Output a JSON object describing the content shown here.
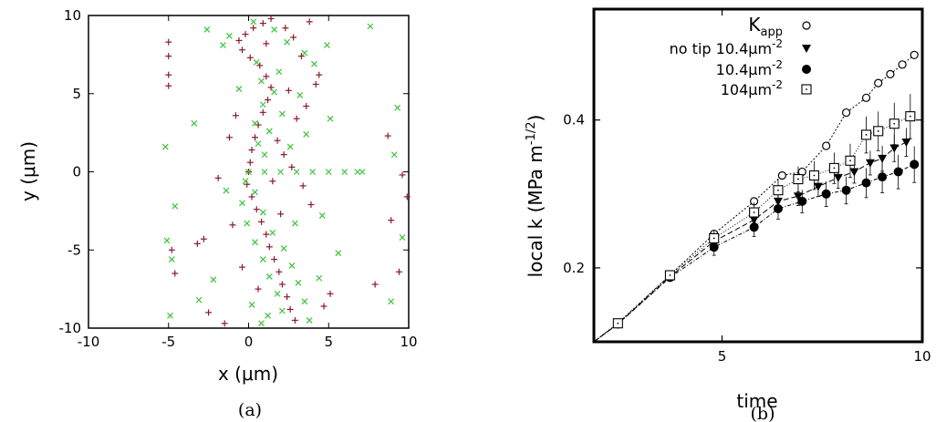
{
  "chart_data": [
    {
      "type": "scatter",
      "caption": "(a)",
      "xlabel": "x (μm)",
      "ylabel": "y (μm)",
      "xlim": [
        -10,
        10
      ],
      "ylim": [
        -10,
        10
      ],
      "xticks": [
        "-10",
        "-5",
        "0",
        "5",
        "10"
      ],
      "yticks": [
        "-10",
        "-5",
        "0",
        "5",
        "10"
      ],
      "colors": {
        "red_plus": "#8b1a2b",
        "green_x": "#3cc23c"
      },
      "series": [
        {
          "marker": "plus",
          "color": "#8b1a2b",
          "points": [
            [
              1.4,
              9.8
            ],
            [
              0.9,
              9.5
            ],
            [
              0.3,
              9.2
            ],
            [
              -0.2,
              8.8
            ],
            [
              -0.6,
              8.4
            ],
            [
              -0.4,
              7.8
            ],
            [
              0.1,
              7.3
            ],
            [
              0.7,
              6.8
            ],
            [
              1.1,
              6.1
            ],
            [
              1.4,
              5.4
            ],
            [
              1.2,
              4.6
            ],
            [
              0.9,
              3.8
            ],
            [
              0.6,
              3.0
            ],
            [
              0.4,
              2.2
            ],
            [
              0.2,
              1.4
            ],
            [
              0.1,
              0.6
            ],
            [
              0,
              0
            ],
            [
              -0.1,
              -0.8
            ],
            [
              0.2,
              -1.6
            ],
            [
              0.5,
              -2.4
            ],
            [
              0.8,
              -3.2
            ],
            [
              1.1,
              -4.0
            ],
            [
              1.3,
              -4.8
            ],
            [
              1.6,
              -5.6
            ],
            [
              1.9,
              -6.4
            ],
            [
              2.1,
              -7.2
            ],
            [
              2.4,
              -8.0
            ],
            [
              2.6,
              -8.8
            ],
            [
              2.9,
              -9.5
            ],
            [
              -5,
              8.3
            ],
            [
              -5,
              7.4
            ],
            [
              -5,
              6.2
            ],
            [
              -5,
              5.5
            ],
            [
              -4.8,
              -5.0
            ],
            [
              -4.6,
              -6.5
            ],
            [
              -3.2,
              -4.6
            ],
            [
              -2.8,
              -4.3
            ],
            [
              -2.5,
              -9.0
            ],
            [
              -1.5,
              -9.7
            ],
            [
              2.2,
              1.1
            ],
            [
              2.7,
              0.3
            ],
            [
              3.4,
              -0.9
            ],
            [
              3.9,
              -2.1
            ],
            [
              3.0,
              3.4
            ],
            [
              3.6,
              4.2
            ],
            [
              4.2,
              5.6
            ],
            [
              5.1,
              -7.8
            ],
            [
              4.7,
              -8.6
            ],
            [
              2.8,
              8.6
            ],
            [
              3.8,
              9.6
            ],
            [
              4.4,
              6.2
            ],
            [
              8.7,
              2.3
            ],
            [
              9.6,
              -0.2
            ],
            [
              9.9,
              -1.6
            ],
            [
              8.9,
              -3.1
            ],
            [
              9.4,
              -6.4
            ],
            [
              7.9,
              -7.2
            ],
            [
              1.8,
              2.0
            ],
            [
              -0.8,
              3.6
            ],
            [
              -1.2,
              2.2
            ],
            [
              2.0,
              -2.7
            ],
            [
              -0.4,
              -6.1
            ],
            [
              0.6,
              -7.5
            ],
            [
              -1.9,
              -0.4
            ],
            [
              1.5,
              -0.6
            ],
            [
              2.5,
              5.2
            ],
            [
              3.3,
              7.4
            ],
            [
              -1.0,
              -3.4
            ],
            [
              1.1,
              8.2
            ],
            [
              2.3,
              9.2
            ]
          ]
        },
        {
          "marker": "cross",
          "color": "#3cc23c",
          "points": [
            [
              0.3,
              9.6
            ],
            [
              1.6,
              9.1
            ],
            [
              -1.2,
              8.7
            ],
            [
              2.4,
              8.3
            ],
            [
              3.5,
              7.6
            ],
            [
              0.5,
              7.0
            ],
            [
              1.9,
              6.4
            ],
            [
              4.1,
              6.9
            ],
            [
              0.8,
              5.8
            ],
            [
              1.6,
              5.1
            ],
            [
              3.2,
              4.9
            ],
            [
              0.9,
              4.3
            ],
            [
              2.1,
              3.7
            ],
            [
              0.4,
              3.1
            ],
            [
              1.3,
              2.6
            ],
            [
              0.6,
              1.8
            ],
            [
              1.0,
              1.1
            ],
            [
              0,
              0
            ],
            [
              1,
              0
            ],
            [
              2,
              0
            ],
            [
              3,
              0
            ],
            [
              4,
              0
            ],
            [
              5,
              0
            ],
            [
              6,
              0
            ],
            [
              6.8,
              0
            ],
            [
              7.1,
              0
            ],
            [
              -0.2,
              -0.6
            ],
            [
              0.4,
              -1.3
            ],
            [
              -0.4,
              -2.0
            ],
            [
              0.9,
              -2.6
            ],
            [
              -0.1,
              -3.3
            ],
            [
              1.5,
              -3.9
            ],
            [
              0.4,
              -4.5
            ],
            [
              2.2,
              -4.9
            ],
            [
              0.9,
              -5.6
            ],
            [
              2.7,
              -6.0
            ],
            [
              1.3,
              -6.7
            ],
            [
              3.1,
              -7.1
            ],
            [
              1.8,
              -7.8
            ],
            [
              3.5,
              -8.3
            ],
            [
              2.1,
              -8.9
            ],
            [
              3.8,
              -9.5
            ],
            [
              0.8,
              -9.7
            ],
            [
              -4.9,
              -9.2
            ],
            [
              -5.1,
              -4.4
            ],
            [
              -4.8,
              -5.6
            ],
            [
              -5.2,
              1.6
            ],
            [
              -4.6,
              -2.2
            ],
            [
              -3.1,
              -8.2
            ],
            [
              -2.2,
              -6.9
            ],
            [
              -1.6,
              8.1
            ],
            [
              -2.6,
              9.1
            ],
            [
              -3.4,
              3.1
            ],
            [
              4.6,
              -2.8
            ],
            [
              5.1,
              3.4
            ],
            [
              7.6,
              9.3
            ],
            [
              9.3,
              4.1
            ],
            [
              9.1,
              1.1
            ],
            [
              9.6,
              -4.2
            ],
            [
              8.9,
              -8.3
            ],
            [
              5.6,
              -5.2
            ],
            [
              4.4,
              -6.8
            ],
            [
              2.9,
              -3.3
            ],
            [
              3.6,
              2.4
            ],
            [
              0.2,
              -8.5
            ],
            [
              -0.6,
              5.3
            ],
            [
              4.9,
              8.1
            ],
            [
              2.6,
              1.6
            ],
            [
              -1.4,
              -1.2
            ],
            [
              1.2,
              -9.2
            ]
          ]
        }
      ]
    },
    {
      "type": "line",
      "caption": "(b)",
      "xlabel": "time",
      "ylabel": "local k (MPa m-1/2)",
      "xlim": [
        1.8,
        10
      ],
      "ylim": [
        0.1,
        0.55
      ],
      "xticks": [
        5,
        10
      ],
      "yticks": [
        0.2,
        0.4
      ],
      "legend_position": "top-right",
      "series": [
        {
          "name": "Kapp",
          "marker": "open-circle",
          "x": [
            2.4,
            3.7,
            4.8,
            5.8,
            6.5,
            7.0,
            7.6,
            8.1,
            8.6,
            8.9,
            9.2,
            9.5,
            9.8
          ],
          "y": [
            0.125,
            0.19,
            0.246,
            0.29,
            0.325,
            0.33,
            0.365,
            0.41,
            0.43,
            0.45,
            0.462,
            0.475,
            0.488
          ]
        },
        {
          "name": "no tip 10.4μm-2",
          "marker": "filled-triangle",
          "x": [
            2.4,
            3.7,
            4.8,
            5.8,
            6.4,
            6.9,
            7.4,
            7.9,
            8.3,
            8.7,
            9.0,
            9.3,
            9.6
          ],
          "y": [
            0.124,
            0.188,
            0.236,
            0.265,
            0.29,
            0.297,
            0.31,
            0.322,
            0.33,
            0.342,
            0.348,
            0.362,
            0.37
          ]
        },
        {
          "name": "10.4μm-2",
          "marker": "filled-circle",
          "x": [
            2.4,
            3.7,
            4.8,
            5.8,
            6.4,
            7.0,
            7.6,
            8.1,
            8.6,
            9.0,
            9.4,
            9.8
          ],
          "y": [
            0.124,
            0.187,
            0.228,
            0.255,
            0.28,
            0.29,
            0.3,
            0.305,
            0.315,
            0.323,
            0.33,
            0.34
          ]
        },
        {
          "name": "104μm-2",
          "marker": "open-square",
          "x": [
            2.4,
            3.7,
            4.8,
            5.8,
            6.4,
            6.9,
            7.3,
            7.8,
            8.2,
            8.6,
            8.9,
            9.3,
            9.7
          ],
          "y": [
            0.125,
            0.19,
            0.24,
            0.275,
            0.305,
            0.32,
            0.325,
            0.335,
            0.345,
            0.38,
            0.385,
            0.395,
            0.405
          ]
        }
      ]
    }
  ]
}
